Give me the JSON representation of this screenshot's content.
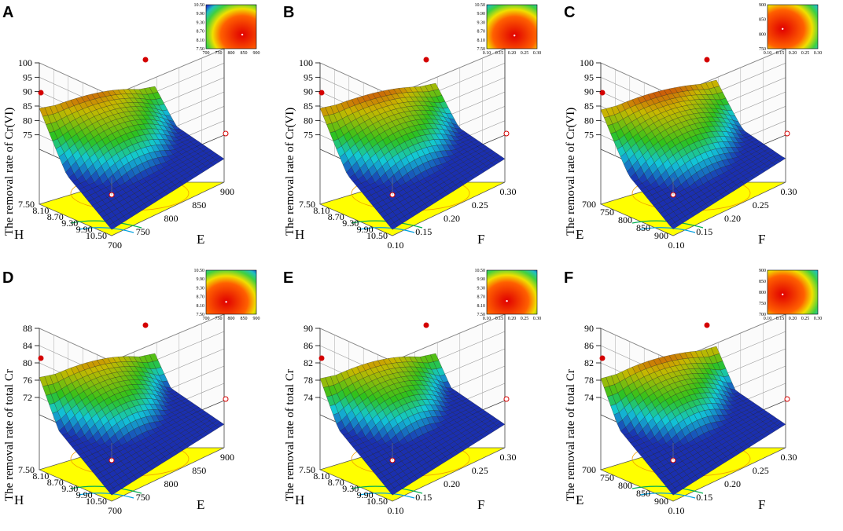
{
  "colors": {
    "surface_low": "#1a2fb0",
    "surface_mid_low": "#12c8d8",
    "surface_mid": "#2ec21c",
    "surface_mid_high": "#c8b800",
    "surface_high": "#d01010",
    "surface_top": "#2a0000",
    "floor": "#ffff00",
    "point": "#d40000"
  },
  "chart_data": [
    {
      "id": "A",
      "type": "surface",
      "title": "",
      "zlabel": "The removal rate of Cr(VI)",
      "zticks": [
        "100",
        "95",
        "90",
        "85",
        "80",
        "75"
      ],
      "zlim": [
        70,
        100
      ],
      "x_name": "H",
      "x_ticks": [
        "7.50",
        "8.10",
        "8.70",
        "9.30",
        "9.90",
        "10.50"
      ],
      "y_name": "E",
      "y_ticks": [
        "700",
        "750",
        "800",
        "850",
        "900"
      ],
      "surface": {
        "peak": 97.5,
        "corner_far": 91.5,
        "corner_front": 70.5,
        "corner_right": 86,
        "corner_left": 91
      },
      "inset": {
        "x_ticks": [
          "700",
          "750",
          "800",
          "850",
          "900"
        ],
        "y_ticks": [
          "10.50",
          "9.90",
          "9.30",
          "8.70",
          "8.10",
          "7.50"
        ],
        "hot": [
          0.72,
          0.68
        ],
        "cool": "tr"
      }
    },
    {
      "id": "B",
      "type": "surface",
      "title": "",
      "zlabel": "The removal rate of Cr(VI)",
      "zticks": [
        "100",
        "95",
        "90",
        "85",
        "80",
        "75"
      ],
      "zlim": [
        70,
        100
      ],
      "x_name": "H",
      "x_ticks": [
        "7.50",
        "8.10",
        "8.70",
        "9.30",
        "9.90",
        "10.50"
      ],
      "y_name": "F",
      "y_ticks": [
        "0.10",
        "0.15",
        "0.20",
        "0.25",
        "0.30"
      ],
      "surface": {
        "peak": 97,
        "corner_far": 91,
        "corner_front": 70,
        "corner_right": 88,
        "corner_left": 91
      },
      "inset": {
        "x_ticks": [
          "0.10",
          "0.15",
          "0.20",
          "0.25",
          "0.30"
        ],
        "y_ticks": [
          "10.50",
          "9.90",
          "9.30",
          "8.70",
          "8.10",
          "7.50"
        ],
        "hot": [
          0.55,
          0.7
        ],
        "cool": "tr"
      }
    },
    {
      "id": "C",
      "type": "surface",
      "title": "",
      "zlabel": "The removal rate of Cr(VI)",
      "zticks": [
        "100",
        "95",
        "90",
        "85",
        "80",
        "75"
      ],
      "zlim": [
        70,
        100
      ],
      "x_name": "E",
      "x_ticks": [
        "700",
        "750",
        "800",
        "850",
        "900"
      ],
      "y_name": "F",
      "y_ticks": [
        "0.10",
        "0.15",
        "0.20",
        "0.25",
        "0.30"
      ],
      "surface": {
        "peak": 97.5,
        "corner_far": 92,
        "corner_front": 74,
        "corner_right": 90,
        "corner_left": 90
      },
      "inset": {
        "x_ticks": [
          "0.10",
          "0.15",
          "0.20",
          "0.25",
          "0.30"
        ],
        "y_ticks": [
          "900",
          "850",
          "800",
          "750"
        ],
        "hot": [
          0.3,
          0.55
        ],
        "cool": "tr"
      }
    },
    {
      "id": "D",
      "type": "surface",
      "title": "",
      "zlabel": "The removal rate of total Cr",
      "zticks": [
        "88",
        "84",
        "80",
        "76",
        "72"
      ],
      "zlim": [
        68,
        88
      ],
      "x_name": "H",
      "x_ticks": [
        "7.50",
        "8.10",
        "8.70",
        "9.30",
        "9.90",
        "10.50"
      ],
      "y_name": "E",
      "y_ticks": [
        "700",
        "750",
        "800",
        "850",
        "900"
      ],
      "surface": {
        "peak": 86.5,
        "corner_far": 82.5,
        "corner_front": 69,
        "corner_right": 78,
        "corner_left": 80.5
      },
      "inset": {
        "x_ticks": [
          "700",
          "750",
          "800",
          "850",
          "900"
        ],
        "y_ticks": [
          "10.50",
          "9.90",
          "9.30",
          "8.70",
          "8.10",
          "7.50"
        ],
        "hot": [
          0.4,
          0.72
        ],
        "cool": "tr"
      }
    },
    {
      "id": "E",
      "type": "surface",
      "title": "",
      "zlabel": "The removal rate of total Cr",
      "zticks": [
        "90",
        "86",
        "82",
        "78",
        "74"
      ],
      "zlim": [
        70,
        90
      ],
      "x_name": "H",
      "x_ticks": [
        "7.50",
        "8.10",
        "8.70",
        "9.30",
        "9.90",
        "10.50"
      ],
      "y_name": "F",
      "y_ticks": [
        "0.10",
        "0.15",
        "0.20",
        "0.25",
        "0.30"
      ],
      "surface": {
        "peak": 88.5,
        "corner_far": 83,
        "corner_front": 70.5,
        "corner_right": 80,
        "corner_left": 82
      },
      "inset": {
        "x_ticks": [
          "0.10",
          "0.15",
          "0.20",
          "0.25",
          "0.30"
        ],
        "y_ticks": [
          "10.50",
          "9.90",
          "9.30",
          "8.70",
          "8.10",
          "7.50"
        ],
        "hot": [
          0.4,
          0.7
        ],
        "cool": "tr"
      }
    },
    {
      "id": "F",
      "type": "surface",
      "title": "",
      "zlabel": "The removal rate of total Cr",
      "zticks": [
        "90",
        "86",
        "82",
        "78",
        "74"
      ],
      "zlim": [
        70,
        90
      ],
      "x_name": "E",
      "x_ticks": [
        "700",
        "750",
        "800",
        "850",
        "900"
      ],
      "y_name": "F",
      "y_ticks": [
        "0.10",
        "0.15",
        "0.20",
        "0.25",
        "0.30"
      ],
      "surface": {
        "peak": 88.5,
        "corner_far": 84,
        "corner_front": 71,
        "corner_right": 83,
        "corner_left": 82
      },
      "inset": {
        "x_ticks": [
          "0.10",
          "0.15",
          "0.20",
          "0.25",
          "0.30"
        ],
        "y_ticks": [
          "900",
          "850",
          "800",
          "750",
          "700"
        ],
        "hot": [
          0.3,
          0.55
        ],
        "cool": "tr"
      }
    }
  ]
}
